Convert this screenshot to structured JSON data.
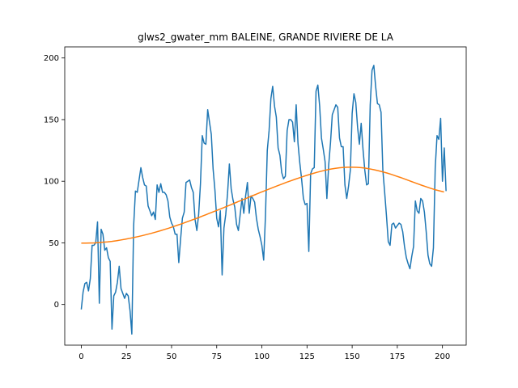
{
  "chart_data": {
    "type": "line",
    "title": "glws2_gwater_mm BALEINE, GRANDE RIVIERE DE LA",
    "xlabel": "",
    "ylabel": "",
    "xlim": [
      -9.15,
      213.15
    ],
    "ylim": [
      -33,
      209
    ],
    "x_ticks": [
      0,
      25,
      50,
      75,
      100,
      125,
      150,
      175,
      200
    ],
    "y_ticks": [
      0,
      50,
      100,
      150,
      200
    ],
    "grid": false,
    "colors": {
      "series1": "#1f77b4",
      "series2": "#ff7f0e"
    },
    "series": [
      {
        "values": [
          -4,
          10,
          17,
          18,
          11,
          21,
          48,
          48,
          50,
          67,
          1,
          61,
          57,
          44,
          46,
          38,
          35,
          -20,
          7,
          10,
          18,
          31,
          13,
          9,
          5,
          9,
          7,
          -5,
          -24,
          64,
          92,
          91,
          101,
          111,
          103,
          97,
          96,
          80,
          76,
          72,
          75,
          69,
          97,
          91,
          98,
          91,
          91,
          89,
          84,
          71,
          66,
          63,
          57,
          57,
          34,
          53,
          70,
          75,
          99,
          100,
          101,
          95,
          91,
          69,
          60,
          73,
          98,
          137,
          131,
          130,
          158,
          148,
          138,
          110,
          93,
          70,
          63,
          76,
          24,
          62,
          73,
          90,
          114,
          94,
          85,
          79,
          65,
          60,
          73,
          86,
          74,
          88,
          99,
          74,
          88,
          86,
          83,
          70,
          61,
          55,
          48,
          36,
          72,
          125,
          141,
          167,
          177,
          161,
          152,
          127,
          121,
          107,
          102,
          104,
          141,
          150,
          150,
          148,
          132,
          162,
          131,
          115,
          102,
          86,
          81,
          82,
          43,
          106,
          110,
          111,
          173,
          178,
          161,
          135,
          126,
          116,
          86,
          113,
          131,
          154,
          158,
          162,
          160,
          135,
          128,
          128,
          97,
          86,
          96,
          109,
          155,
          171,
          164,
          144,
          130,
          147,
          126,
          109,
          97,
          98,
          162,
          190,
          194,
          177,
          163,
          162,
          156,
          109,
          91,
          72,
          51,
          48,
          65,
          66,
          62,
          64,
          66,
          65,
          59,
          47,
          38,
          33,
          29,
          39,
          47,
          84,
          76,
          74,
          86,
          84,
          75,
          59,
          40,
          33,
          31,
          46,
          111,
          137,
          134,
          151,
          100,
          127,
          92
        ],
        "start_x": 0
      },
      {
        "values": [
          49.8,
          49.8,
          49.9,
          50,
          50.2,
          50.5,
          50.8,
          51.2,
          51.7,
          52.3,
          52.9,
          53.6,
          54.3,
          55.1,
          55.9,
          56.8,
          57.7,
          58.7,
          59.7,
          60.8,
          61.9,
          63.1,
          64.3,
          65.5,
          66.8,
          68.1,
          69.4,
          70.7,
          72.1,
          73.5,
          74.9,
          76.3,
          77.7,
          79.2,
          80.6,
          82.1,
          83.6,
          85,
          86.5,
          88,
          89.4,
          90.9,
          92.3,
          93.7,
          95.1,
          96.5,
          97.8,
          99.2,
          100.4,
          101.7,
          102.9,
          104.1,
          105.2,
          106.3,
          107.3,
          108.2,
          109.1,
          109.8,
          110.4,
          110.9,
          111.2,
          111.4,
          111.4,
          111.3,
          111,
          110.6,
          110,
          109.3,
          108.5,
          107.6,
          106.6,
          105.5,
          104.3,
          103.1,
          101.8,
          100.5,
          99.2,
          97.9,
          96.6,
          95.4,
          94.2,
          93.1,
          92.2,
          91.3
        ],
        "x_step": 2.42
      }
    ]
  }
}
